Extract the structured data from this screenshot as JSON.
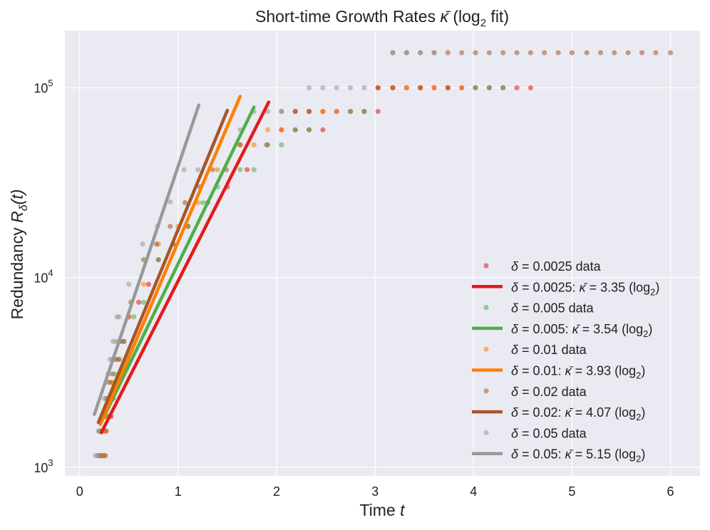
{
  "chart_data": {
    "type": "scatter",
    "title": "Short-time Growth Rates κ̄ (log₂ fit)",
    "title_parts": {
      "pre": "Short-time Growth Rates ",
      "kappa": "κ̄",
      "mid": " (log",
      "sub": "2",
      "post": " fit)"
    },
    "xlabel": "Time t",
    "xlabel_parts": {
      "pre": "Time ",
      "var": "t"
    },
    "ylabel": "Redundancy Rδ(t)",
    "ylabel_parts": {
      "pre": "Redundancy ",
      "var": "R",
      "sub": "δ",
      "post": "(t)"
    },
    "xlim": [
      -0.15,
      6.3
    ],
    "ylim": [
      900,
      200000
    ],
    "yscale": "log",
    "grid": true,
    "legend_position": "lower right",
    "x_ticks": [
      0,
      1,
      2,
      3,
      4,
      5,
      6
    ],
    "x_tick_labels": [
      "0",
      "1",
      "2",
      "3",
      "4",
      "5",
      "6"
    ],
    "y_ticks": [
      1000,
      10000,
      100000
    ],
    "y_tick_labels": [
      {
        "base": "10",
        "exp": "3"
      },
      {
        "base": "10",
        "exp": "4"
      },
      {
        "base": "10",
        "exp": "5"
      }
    ],
    "series": [
      {
        "name": "δ = 0.0025",
        "delta": "0.0025",
        "kappa": "3.35",
        "color": "#e41a1c",
        "data_label": "δ = 0.0025 data",
        "fit_label": "δ = 0.0025: κ̄ = 3.35 (log₂)",
        "fit_line": {
          "x": [
            0.22,
            1.92
          ],
          "y": [
            1520,
            84000
          ]
        },
        "points": [
          {
            "x": 0.24,
            "y": 1150
          },
          {
            "x": 0.26,
            "y": 1150
          },
          {
            "x": 0.25,
            "y": 1550
          },
          {
            "x": 0.27,
            "y": 1550
          },
          {
            "x": 0.3,
            "y": 1850
          },
          {
            "x": 0.32,
            "y": 1850
          },
          {
            "x": 0.34,
            "y": 2300
          },
          {
            "x": 0.37,
            "y": 2800
          },
          {
            "x": 0.4,
            "y": 3700
          },
          {
            "x": 0.45,
            "y": 4600
          },
          {
            "x": 0.5,
            "y": 6200
          },
          {
            "x": 0.6,
            "y": 7400
          },
          {
            "x": 0.7,
            "y": 9200
          },
          {
            "x": 0.8,
            "y": 12400
          },
          {
            "x": 0.95,
            "y": 15000
          },
          {
            "x": 1.1,
            "y": 18600
          },
          {
            "x": 1.3,
            "y": 24800
          },
          {
            "x": 1.5,
            "y": 30000
          },
          {
            "x": 1.7,
            "y": 37000
          },
          {
            "x": 1.9,
            "y": 50000
          },
          {
            "x": 2.05,
            "y": 60000
          },
          {
            "x": 2.19,
            "y": 60000
          },
          {
            "x": 2.33,
            "y": 60000
          },
          {
            "x": 2.47,
            "y": 60000
          },
          {
            "x": 2.19,
            "y": 75000
          },
          {
            "x": 2.33,
            "y": 75000
          },
          {
            "x": 2.47,
            "y": 75000
          },
          {
            "x": 2.61,
            "y": 75000
          },
          {
            "x": 2.75,
            "y": 75000
          },
          {
            "x": 2.89,
            "y": 75000
          },
          {
            "x": 3.03,
            "y": 75000
          },
          {
            "x": 3.03,
            "y": 100000
          },
          {
            "x": 3.18,
            "y": 100000
          },
          {
            "x": 3.32,
            "y": 100000
          },
          {
            "x": 3.46,
            "y": 100000
          },
          {
            "x": 3.6,
            "y": 100000
          },
          {
            "x": 3.74,
            "y": 100000
          },
          {
            "x": 3.88,
            "y": 100000
          },
          {
            "x": 4.02,
            "y": 100000
          },
          {
            "x": 4.16,
            "y": 100000
          },
          {
            "x": 4.3,
            "y": 100000
          },
          {
            "x": 4.44,
            "y": 100000
          },
          {
            "x": 4.58,
            "y": 100000
          }
        ]
      },
      {
        "name": "δ = 0.005",
        "delta": "0.005",
        "kappa": "3.54",
        "color": "#4daf4a",
        "data_label": "δ = 0.005 data",
        "fit_label": "δ = 0.005: κ̄ = 3.54 (log₂)",
        "fit_line": {
          "x": [
            0.21,
            1.77
          ],
          "y": [
            1680,
            79000
          ]
        },
        "points": [
          {
            "x": 0.22,
            "y": 1150
          },
          {
            "x": 0.24,
            "y": 1150
          },
          {
            "x": 0.23,
            "y": 1550
          },
          {
            "x": 0.25,
            "y": 1550
          },
          {
            "x": 0.27,
            "y": 1850
          },
          {
            "x": 0.3,
            "y": 2300
          },
          {
            "x": 0.33,
            "y": 2800
          },
          {
            "x": 0.36,
            "y": 3100
          },
          {
            "x": 0.4,
            "y": 3700
          },
          {
            "x": 0.45,
            "y": 4600
          },
          {
            "x": 0.55,
            "y": 6200
          },
          {
            "x": 0.65,
            "y": 7400
          },
          {
            "x": 0.8,
            "y": 12400
          },
          {
            "x": 0.95,
            "y": 15000
          },
          {
            "x": 1.1,
            "y": 18600
          },
          {
            "x": 1.25,
            "y": 24800
          },
          {
            "x": 1.4,
            "y": 30000
          },
          {
            "x": 1.63,
            "y": 37000
          },
          {
            "x": 1.77,
            "y": 37000
          },
          {
            "x": 1.91,
            "y": 50000
          },
          {
            "x": 2.05,
            "y": 50000
          },
          {
            "x": 2.19,
            "y": 60000
          },
          {
            "x": 2.33,
            "y": 60000
          },
          {
            "x": 2.75,
            "y": 75000
          },
          {
            "x": 2.89,
            "y": 75000
          },
          {
            "x": 4.02,
            "y": 100000
          },
          {
            "x": 4.16,
            "y": 100000
          },
          {
            "x": 4.3,
            "y": 100000
          }
        ]
      },
      {
        "name": "δ = 0.01",
        "delta": "0.01",
        "kappa": "3.93",
        "color": "#ff7f00",
        "data_label": "δ = 0.01 data",
        "fit_label": "δ = 0.01: κ̄ = 3.93 (log₂)",
        "fit_line": {
          "x": [
            0.21,
            1.63
          ],
          "y": [
            1680,
            90000
          ]
        },
        "points": [
          {
            "x": 0.21,
            "y": 1150
          },
          {
            "x": 0.23,
            "y": 1150
          },
          {
            "x": 0.22,
            "y": 1550
          },
          {
            "x": 0.24,
            "y": 1550
          },
          {
            "x": 0.26,
            "y": 1850
          },
          {
            "x": 0.29,
            "y": 2300
          },
          {
            "x": 0.32,
            "y": 2800
          },
          {
            "x": 0.36,
            "y": 3700
          },
          {
            "x": 0.4,
            "y": 4600
          },
          {
            "x": 0.5,
            "y": 6200
          },
          {
            "x": 0.65,
            "y": 9200
          },
          {
            "x": 0.8,
            "y": 15000
          },
          {
            "x": 1.0,
            "y": 18600
          },
          {
            "x": 1.2,
            "y": 24800
          },
          {
            "x": 1.4,
            "y": 37000
          },
          {
            "x": 1.63,
            "y": 50000
          },
          {
            "x": 1.77,
            "y": 50000
          },
          {
            "x": 1.91,
            "y": 60000
          },
          {
            "x": 2.05,
            "y": 60000
          },
          {
            "x": 2.33,
            "y": 75000
          },
          {
            "x": 2.47,
            "y": 75000
          },
          {
            "x": 2.61,
            "y": 75000
          },
          {
            "x": 3.03,
            "y": 100000
          },
          {
            "x": 3.18,
            "y": 100000
          },
          {
            "x": 3.32,
            "y": 100000
          },
          {
            "x": 3.46,
            "y": 100000
          },
          {
            "x": 3.6,
            "y": 100000
          },
          {
            "x": 3.74,
            "y": 100000
          },
          {
            "x": 3.88,
            "y": 100000
          }
        ]
      },
      {
        "name": "δ = 0.02",
        "delta": "0.02",
        "kappa": "4.07",
        "color": "#a65628",
        "data_label": "δ = 0.02 data",
        "fit_label": "δ = 0.02: κ̄ = 4.07 (log₂)",
        "fit_line": {
          "x": [
            0.19,
            1.5
          ],
          "y": [
            1720,
            76000
          ]
        },
        "points": [
          {
            "x": 0.19,
            "y": 1150
          },
          {
            "x": 0.21,
            "y": 1150
          },
          {
            "x": 0.2,
            "y": 1550
          },
          {
            "x": 0.22,
            "y": 1550
          },
          {
            "x": 0.24,
            "y": 1850
          },
          {
            "x": 0.27,
            "y": 2300
          },
          {
            "x": 0.3,
            "y": 2800
          },
          {
            "x": 0.33,
            "y": 3100
          },
          {
            "x": 0.37,
            "y": 3700
          },
          {
            "x": 0.42,
            "y": 4600
          },
          {
            "x": 0.52,
            "y": 7400
          },
          {
            "x": 0.65,
            "y": 12400
          },
          {
            "x": 0.78,
            "y": 15000
          },
          {
            "x": 0.92,
            "y": 18600
          },
          {
            "x": 1.07,
            "y": 24800
          },
          {
            "x": 1.22,
            "y": 30000
          },
          {
            "x": 1.35,
            "y": 37000
          },
          {
            "x": 1.49,
            "y": 37000
          },
          {
            "x": 1.63,
            "y": 50000
          },
          {
            "x": 2.05,
            "y": 75000
          },
          {
            "x": 2.19,
            "y": 75000
          },
          {
            "x": 2.33,
            "y": 75000
          },
          {
            "x": 3.03,
            "y": 100000
          },
          {
            "x": 3.18,
            "y": 100000
          },
          {
            "x": 3.46,
            "y": 100000
          },
          {
            "x": 3.74,
            "y": 100000
          },
          {
            "x": 3.18,
            "y": 153000
          },
          {
            "x": 3.32,
            "y": 153000
          },
          {
            "x": 3.46,
            "y": 153000
          },
          {
            "x": 3.6,
            "y": 153000
          },
          {
            "x": 3.74,
            "y": 153000
          },
          {
            "x": 3.88,
            "y": 153000
          },
          {
            "x": 4.02,
            "y": 153000
          },
          {
            "x": 4.16,
            "y": 153000
          },
          {
            "x": 4.3,
            "y": 153000
          },
          {
            "x": 4.44,
            "y": 153000
          },
          {
            "x": 4.58,
            "y": 153000
          },
          {
            "x": 4.72,
            "y": 153000
          },
          {
            "x": 4.86,
            "y": 153000
          },
          {
            "x": 5.0,
            "y": 153000
          },
          {
            "x": 5.15,
            "y": 153000
          },
          {
            "x": 5.29,
            "y": 153000
          },
          {
            "x": 5.43,
            "y": 153000
          },
          {
            "x": 5.57,
            "y": 153000
          },
          {
            "x": 5.71,
            "y": 153000
          },
          {
            "x": 5.85,
            "y": 153000
          },
          {
            "x": 6.0,
            "y": 153000
          }
        ]
      },
      {
        "name": "δ = 0.05",
        "delta": "0.05",
        "kappa": "5.15",
        "color": "#999999",
        "data_label": "δ = 0.05 data",
        "fit_label": "δ = 0.05: κ̄ = 5.15 (log₂)",
        "fit_line": {
          "x": [
            0.15,
            1.21
          ],
          "y": [
            1900,
            81000
          ]
        },
        "points": [
          {
            "x": 0.16,
            "y": 1150
          },
          {
            "x": 0.18,
            "y": 1150
          },
          {
            "x": 0.2,
            "y": 1150
          },
          {
            "x": 0.19,
            "y": 1550
          },
          {
            "x": 0.21,
            "y": 1550
          },
          {
            "x": 0.23,
            "y": 1850
          },
          {
            "x": 0.25,
            "y": 2300
          },
          {
            "x": 0.27,
            "y": 2800
          },
          {
            "x": 0.29,
            "y": 3100
          },
          {
            "x": 0.31,
            "y": 3700
          },
          {
            "x": 0.33,
            "y": 3700
          },
          {
            "x": 0.34,
            "y": 4600
          },
          {
            "x": 0.37,
            "y": 4600
          },
          {
            "x": 0.38,
            "y": 6200
          },
          {
            "x": 0.4,
            "y": 6200
          },
          {
            "x": 0.5,
            "y": 9200
          },
          {
            "x": 0.64,
            "y": 15000
          },
          {
            "x": 0.79,
            "y": 18600
          },
          {
            "x": 0.92,
            "y": 25000
          },
          {
            "x": 1.06,
            "y": 37000
          },
          {
            "x": 1.2,
            "y": 37000
          },
          {
            "x": 1.63,
            "y": 60000
          },
          {
            "x": 1.77,
            "y": 75000
          },
          {
            "x": 1.91,
            "y": 75000
          },
          {
            "x": 2.05,
            "y": 75000
          },
          {
            "x": 2.33,
            "y": 100000
          },
          {
            "x": 2.47,
            "y": 100000
          },
          {
            "x": 2.61,
            "y": 100000
          },
          {
            "x": 2.75,
            "y": 100000
          },
          {
            "x": 2.89,
            "y": 100000
          },
          {
            "x": 3.18,
            "y": 153000
          },
          {
            "x": 3.32,
            "y": 153000
          },
          {
            "x": 3.46,
            "y": 153000
          },
          {
            "x": 3.6,
            "y": 153000
          }
        ]
      }
    ]
  }
}
